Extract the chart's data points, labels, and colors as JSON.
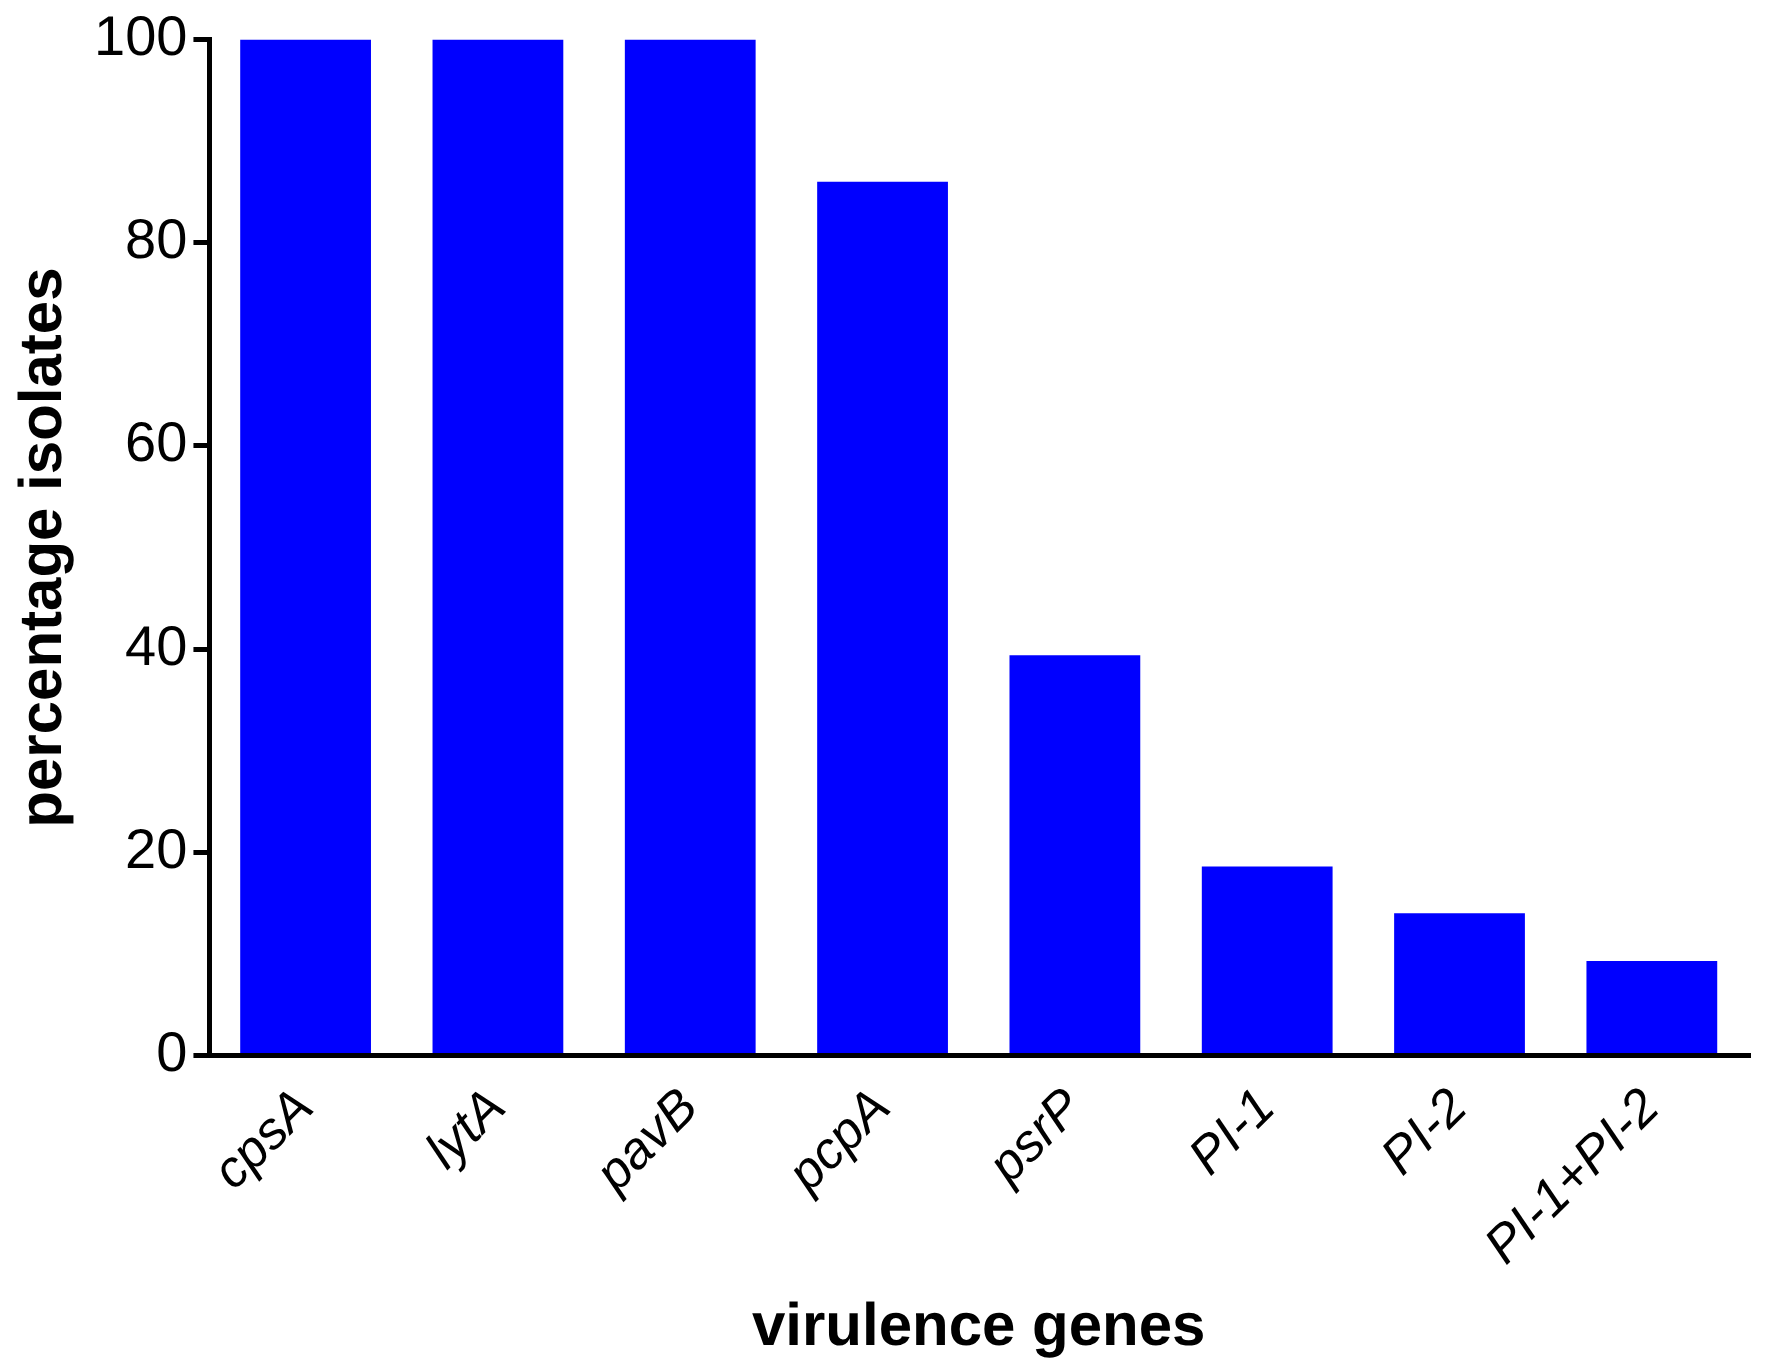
{
  "chart_data": {
    "type": "bar",
    "xlabel": "virulence genes",
    "ylabel": "percentage isolates",
    "categories": [
      "cpsA",
      "lytA",
      "pavB",
      "pcpA",
      "psrP",
      "PI-1",
      "PI-2",
      "PI-1+PI-2"
    ],
    "values": [
      100,
      100,
      100,
      86,
      39.4,
      18.6,
      14,
      9.3
    ],
    "color": "#0000ff",
    "ylim": [
      0,
      100
    ],
    "yticks": [
      0,
      20,
      40,
      60,
      80,
      100
    ],
    "grid": false,
    "legend": false
  }
}
